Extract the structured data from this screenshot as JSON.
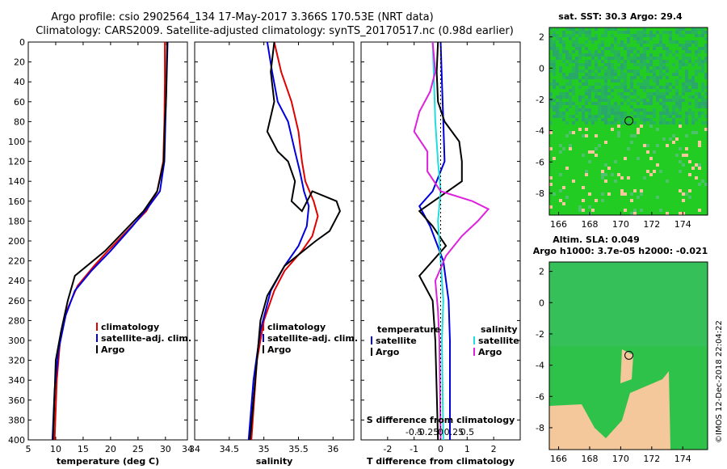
{
  "title_line1": "Argo profile: csio 2902564_134 17-May-2017 3.366S 170.53E (NRT data)",
  "title_line2": "Climatology: CARS2009. Satellite-adjusted climatology: synTS_20170517.nc (0.98d earlier)",
  "colors": {
    "clim": "#e00000",
    "sat": "#0000dd",
    "argo": "#000000",
    "sat_s": "#22dddd",
    "argo_s": "#dd22dd",
    "land": "#f4c89a",
    "green1": "#22cc22",
    "green2": "#33bb66"
  },
  "depth_ticks": [
    "0",
    "20",
    "40",
    "60",
    "80",
    "100",
    "120",
    "140",
    "160",
    "180",
    "200",
    "220",
    "240",
    "260",
    "280",
    "300",
    "320",
    "340",
    "360",
    "380",
    "400"
  ],
  "chart_data": [
    {
      "type": "line",
      "id": "temperature",
      "xlabel": "temperature (deg C)",
      "xlim": [
        5,
        34
      ],
      "ylim": [
        400,
        0
      ],
      "xticks": [
        5,
        10,
        15,
        20,
        25,
        30
      ],
      "xticklabels": [
        "5",
        "10",
        "15",
        "20",
        "25",
        "30"
      ],
      "legend": [
        "climatology",
        "satellite-adj. clim.",
        "Argo"
      ],
      "series": [
        {
          "name": "climatology",
          "key": "clim",
          "points": [
            [
              29.9,
              0
            ],
            [
              29.9,
              40
            ],
            [
              29.8,
              80
            ],
            [
              29.6,
              120
            ],
            [
              28.5,
              150
            ],
            [
              26.5,
              170
            ],
            [
              23,
              190
            ],
            [
              19.5,
              210
            ],
            [
              17,
              225
            ],
            [
              14,
              245
            ],
            [
              12,
              270
            ],
            [
              10.8,
              300
            ],
            [
              10.2,
              340
            ],
            [
              9.8,
              400
            ]
          ]
        },
        {
          "name": "satellite-adj. clim.",
          "key": "sat",
          "points": [
            [
              30.4,
              0
            ],
            [
              30.2,
              40
            ],
            [
              30,
              80
            ],
            [
              29.8,
              120
            ],
            [
              29,
              150
            ],
            [
              27,
              165
            ],
            [
              24,
              185
            ],
            [
              20,
              210
            ],
            [
              16.5,
              230
            ],
            [
              13.5,
              250
            ],
            [
              11.8,
              275
            ],
            [
              10.5,
              310
            ],
            [
              9.8,
              350
            ],
            [
              9.4,
              400
            ]
          ]
        },
        {
          "name": "Argo",
          "key": "argo",
          "points": [
            [
              30.3,
              0
            ],
            [
              30.2,
              30
            ],
            [
              30.1,
              60
            ],
            [
              29.9,
              80
            ],
            [
              29.7,
              120
            ],
            [
              28.5,
              150
            ],
            [
              26,
              170
            ],
            [
              22.5,
              190
            ],
            [
              19,
              210
            ],
            [
              13.5,
              235
            ],
            [
              12.2,
              260
            ],
            [
              11,
              290
            ],
            [
              10,
              320
            ],
            [
              9.7,
              370
            ],
            [
              9.5,
              400
            ]
          ]
        }
      ]
    },
    {
      "type": "line",
      "id": "salinity",
      "xlabel": "salinity",
      "xlim": [
        34,
        36.3
      ],
      "ylim": [
        400,
        0
      ],
      "xticks": [
        34,
        34.5,
        35,
        35.5,
        36
      ],
      "xticklabels": [
        "34",
        "34.5",
        "35",
        "35.5",
        "36"
      ],
      "legend": [
        "climatology",
        "satellite-adj. clim.",
        "Argo"
      ],
      "series": [
        {
          "name": "climatology",
          "key": "clim",
          "points": [
            [
              35.15,
              0
            ],
            [
              35.25,
              30
            ],
            [
              35.4,
              60
            ],
            [
              35.5,
              90
            ],
            [
              35.55,
              120
            ],
            [
              35.6,
              140
            ],
            [
              35.72,
              160
            ],
            [
              35.78,
              175
            ],
            [
              35.7,
              195
            ],
            [
              35.55,
              210
            ],
            [
              35.3,
              230
            ],
            [
              35.15,
              250
            ],
            [
              35,
              280
            ],
            [
              34.9,
              320
            ],
            [
              34.82,
              400
            ]
          ]
        },
        {
          "name": "satellite-adj. clim.",
          "key": "sat",
          "points": [
            [
              35.05,
              0
            ],
            [
              35.12,
              30
            ],
            [
              35.2,
              60
            ],
            [
              35.35,
              80
            ],
            [
              35.45,
              110
            ],
            [
              35.52,
              130
            ],
            [
              35.58,
              150
            ],
            [
              35.65,
              165
            ],
            [
              35.62,
              185
            ],
            [
              35.5,
              205
            ],
            [
              35.3,
              225
            ],
            [
              35.1,
              250
            ],
            [
              34.95,
              290
            ],
            [
              34.85,
              340
            ],
            [
              34.78,
              400
            ]
          ]
        },
        {
          "name": "Argo",
          "key": "argo",
          "points": [
            [
              35.15,
              0
            ],
            [
              35.1,
              30
            ],
            [
              35.15,
              60
            ],
            [
              35.05,
              90
            ],
            [
              35.2,
              110
            ],
            [
              35.35,
              120
            ],
            [
              35.45,
              140
            ],
            [
              35.4,
              160
            ],
            [
              35.55,
              170
            ],
            [
              35.7,
              150
            ],
            [
              36.05,
              160
            ],
            [
              36.1,
              170
            ],
            [
              35.95,
              190
            ],
            [
              35.75,
              200
            ],
            [
              35.3,
              225
            ],
            [
              35.05,
              255
            ],
            [
              34.95,
              280
            ],
            [
              34.9,
              320
            ],
            [
              34.85,
              360
            ],
            [
              34.8,
              400
            ]
          ]
        }
      ]
    },
    {
      "type": "line",
      "id": "difference",
      "xlabel": "T difference from climatology",
      "xlabel2": "S difference from climatology",
      "xlim": [
        -3,
        3
      ],
      "ylim": [
        400,
        0
      ],
      "xticks": [
        -2,
        -1,
        0,
        1,
        2
      ],
      "xticklabels": [
        "-2",
        "-1",
        "0",
        "1",
        "2"
      ],
      "sticks": [
        -1,
        -0.5,
        0,
        0.5,
        1
      ],
      "sticklabels": [
        "-0.5",
        "-0.25",
        "0",
        "0.25",
        "0.5"
      ],
      "legend_title_t": "temperature",
      "legend_title_s": "salinity",
      "legend_t": [
        "satellite",
        "Argo"
      ],
      "legend_s": [
        "satellite",
        "Argo"
      ],
      "series": [
        {
          "name": "temperature satellite",
          "key": "sat",
          "points": [
            [
              0,
              0
            ],
            [
              0.05,
              40
            ],
            [
              0.1,
              80
            ],
            [
              0.15,
              120
            ],
            [
              -0.3,
              150
            ],
            [
              -0.8,
              165
            ],
            [
              -0.4,
              185
            ],
            [
              0.1,
              220
            ],
            [
              0.3,
              260
            ],
            [
              0.35,
              300
            ],
            [
              0.35,
              400
            ]
          ]
        },
        {
          "name": "temperature Argo",
          "key": "argo",
          "points": [
            [
              -0.1,
              0
            ],
            [
              -0.15,
              30
            ],
            [
              -0.1,
              60
            ],
            [
              0.15,
              80
            ],
            [
              0.7,
              100
            ],
            [
              0.8,
              120
            ],
            [
              0.8,
              140
            ],
            [
              0,
              155
            ],
            [
              -0.8,
              170
            ],
            [
              -0.3,
              185
            ],
            [
              0.2,
              205
            ],
            [
              -0.8,
              235
            ],
            [
              -0.3,
              260
            ],
            [
              -0.2,
              300
            ],
            [
              -0.15,
              350
            ],
            [
              -0.1,
              400
            ]
          ]
        },
        {
          "name": "salinity satellite",
          "key": "sat_s",
          "points": [
            [
              -0.3,
              0
            ],
            [
              -0.25,
              40
            ],
            [
              -0.2,
              80
            ],
            [
              -0.1,
              120
            ],
            [
              0,
              150
            ],
            [
              -0.1,
              180
            ],
            [
              0,
              220
            ],
            [
              0.1,
              260
            ],
            [
              0.05,
              300
            ],
            [
              0.1,
              400
            ]
          ]
        },
        {
          "name": "salinity Argo",
          "key": "argo_s",
          "points": [
            [
              -0.3,
              0
            ],
            [
              -0.2,
              30
            ],
            [
              -0.4,
              50
            ],
            [
              -0.8,
              70
            ],
            [
              -1,
              90
            ],
            [
              -0.5,
              110
            ],
            [
              -0.5,
              130
            ],
            [
              0,
              150
            ],
            [
              1.2,
              160
            ],
            [
              1.8,
              168
            ],
            [
              1.4,
              180
            ],
            [
              0.8,
              195
            ],
            [
              0.2,
              215
            ],
            [
              -0.2,
              240
            ],
            [
              -0.1,
              270
            ],
            [
              -0.05,
              300
            ],
            [
              0,
              400
            ]
          ]
        }
      ]
    },
    {
      "type": "heatmap",
      "id": "sst_map",
      "title": "sat. SST: 30.3 Argo: 29.4",
      "xlim": [
        165.4,
        175.6
      ],
      "ylim": [
        -9.4,
        2.6
      ],
      "xticks": [
        166,
        168,
        170,
        172,
        174
      ],
      "yticks": [
        2,
        0,
        -2,
        -4,
        -6,
        -8
      ],
      "xticklabels": [
        "166",
        "168",
        "170",
        "172",
        "174"
      ],
      "yticklabels": [
        "2",
        "0",
        "-2",
        "-4",
        "-6",
        "-8"
      ],
      "float_lon": 170.53,
      "float_lat": -3.366
    },
    {
      "type": "heatmap",
      "id": "sla_map",
      "title": "Altim. SLA: 0.049",
      "subtitle": "Argo h1000: 3.7e-05 h2000: -0.021",
      "xlim": [
        165.4,
        175.6
      ],
      "ylim": [
        -9.4,
        2.6
      ],
      "xticks": [
        166,
        168,
        170,
        172,
        174
      ],
      "yticks": [
        2,
        0,
        -2,
        -4,
        -6,
        -8
      ],
      "xticklabels": [
        "166",
        "168",
        "170",
        "172",
        "174"
      ],
      "yticklabels": [
        "2",
        "0",
        "-2",
        "-4",
        "-6",
        "-8"
      ],
      "float_lon": 170.53,
      "float_lat": -3.366
    }
  ],
  "credit": "©IMOS 12-Dec-2018 22:04:22"
}
